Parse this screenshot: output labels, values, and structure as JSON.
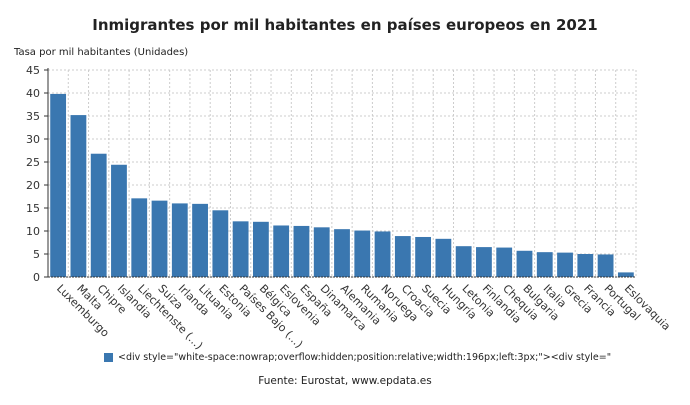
{
  "title": "Inmigrantes por mil habitantes en países europeos en 2021",
  "source": "Fuente: Eurostat, www.epdata.es",
  "legend_text": "<div style=\"white-space:nowrap;overflow:hidden;position:relative;width:196px;left:3px;\"><div style=\"",
  "chart_data": {
    "type": "bar",
    "title": "Inmigrantes por mil habitantes en países europeos en 2021",
    "ylabel": "Tasa por mil habitantes (Unidades)",
    "xlabel": "",
    "ylim": [
      0,
      45
    ],
    "yticks": [
      0,
      5,
      10,
      15,
      20,
      25,
      30,
      35,
      40,
      45
    ],
    "grid": true,
    "legend_placement": "bottom",
    "color": "#3a77b0",
    "categories": [
      "Luxemburgo",
      "Malta",
      "Chipre",
      "Islandia",
      "Liechtenste (...)",
      "Suiza",
      "Irlanda",
      "Lituania",
      "Estonia",
      "Países Bajo (...)",
      "Bélgica",
      "Eslovenia",
      "España",
      "Dinamarca",
      "Alemania",
      "Rumania",
      "Noruega",
      "Croacia",
      "Suecia",
      "Hungría",
      "Letonia",
      "Finlandia",
      "Chequia",
      "Bulgaria",
      "Italia",
      "Grecia",
      "Francia",
      "Portugal",
      "Eslovaquia"
    ],
    "values": [
      39.8,
      35.2,
      26.8,
      24.4,
      17.1,
      16.6,
      16.0,
      15.9,
      14.5,
      12.1,
      12.0,
      11.2,
      11.1,
      10.8,
      10.4,
      10.1,
      9.9,
      8.9,
      8.7,
      8.3,
      6.7,
      6.5,
      6.4,
      5.7,
      5.4,
      5.3,
      5.0,
      4.9,
      1.0
    ]
  }
}
